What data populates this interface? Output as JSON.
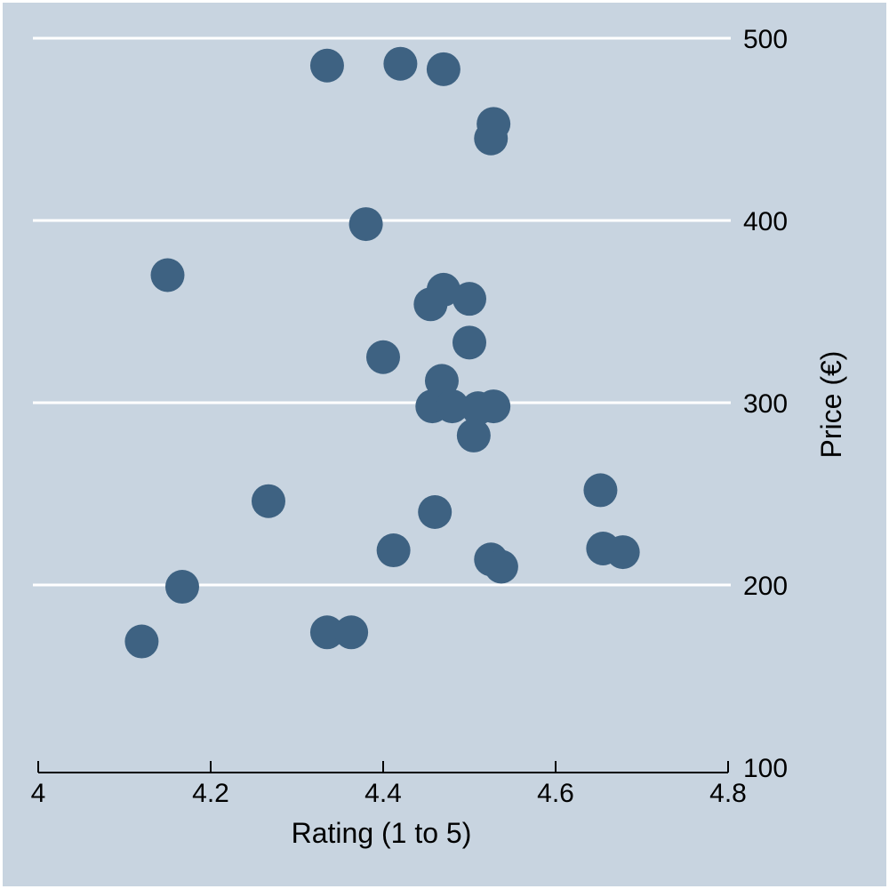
{
  "chart_data": {
    "type": "scatter",
    "xlabel": "Rating (1 to 5)",
    "ylabel": "Price (€)",
    "xlim": [
      4,
      4.8
    ],
    "ylim": [
      100,
      500
    ],
    "xticks": [
      4,
      4.2,
      4.4,
      4.6,
      4.8
    ],
    "yticks": [
      100,
      200,
      300,
      400,
      500
    ],
    "x_tick_labels": [
      "4",
      "4.2",
      "4.4",
      "4.6",
      "4.8"
    ],
    "y_tick_labels": [
      "100",
      "200",
      "300",
      "400",
      "500"
    ],
    "y_axis_position": "right",
    "grid": "horizontal",
    "colors": {
      "background": "#c8d4e0",
      "border": "#ffffff",
      "marker": "#3e6282",
      "gridline": "#ffffff",
      "axis": "#000000"
    },
    "series": [
      {
        "points": [
          [
            4.335,
            485
          ],
          [
            4.42,
            486
          ],
          [
            4.47,
            483
          ],
          [
            4.528,
            453
          ],
          [
            4.525,
            445
          ],
          [
            4.38,
            398
          ],
          [
            4.15,
            370
          ],
          [
            4.47,
            362
          ],
          [
            4.455,
            354
          ],
          [
            4.5,
            357
          ],
          [
            4.5,
            333
          ],
          [
            4.4,
            325
          ],
          [
            4.468,
            312
          ],
          [
            4.457,
            298
          ],
          [
            4.48,
            298
          ],
          [
            4.51,
            297
          ],
          [
            4.528,
            298
          ],
          [
            4.505,
            282
          ],
          [
            4.652,
            252
          ],
          [
            4.267,
            246
          ],
          [
            4.46,
            240
          ],
          [
            4.412,
            219
          ],
          [
            4.655,
            220
          ],
          [
            4.678,
            218
          ],
          [
            4.525,
            214
          ],
          [
            4.537,
            210
          ],
          [
            4.167,
            199
          ],
          [
            4.12,
            169
          ],
          [
            4.335,
            174
          ],
          [
            4.363,
            174
          ]
        ]
      }
    ]
  }
}
